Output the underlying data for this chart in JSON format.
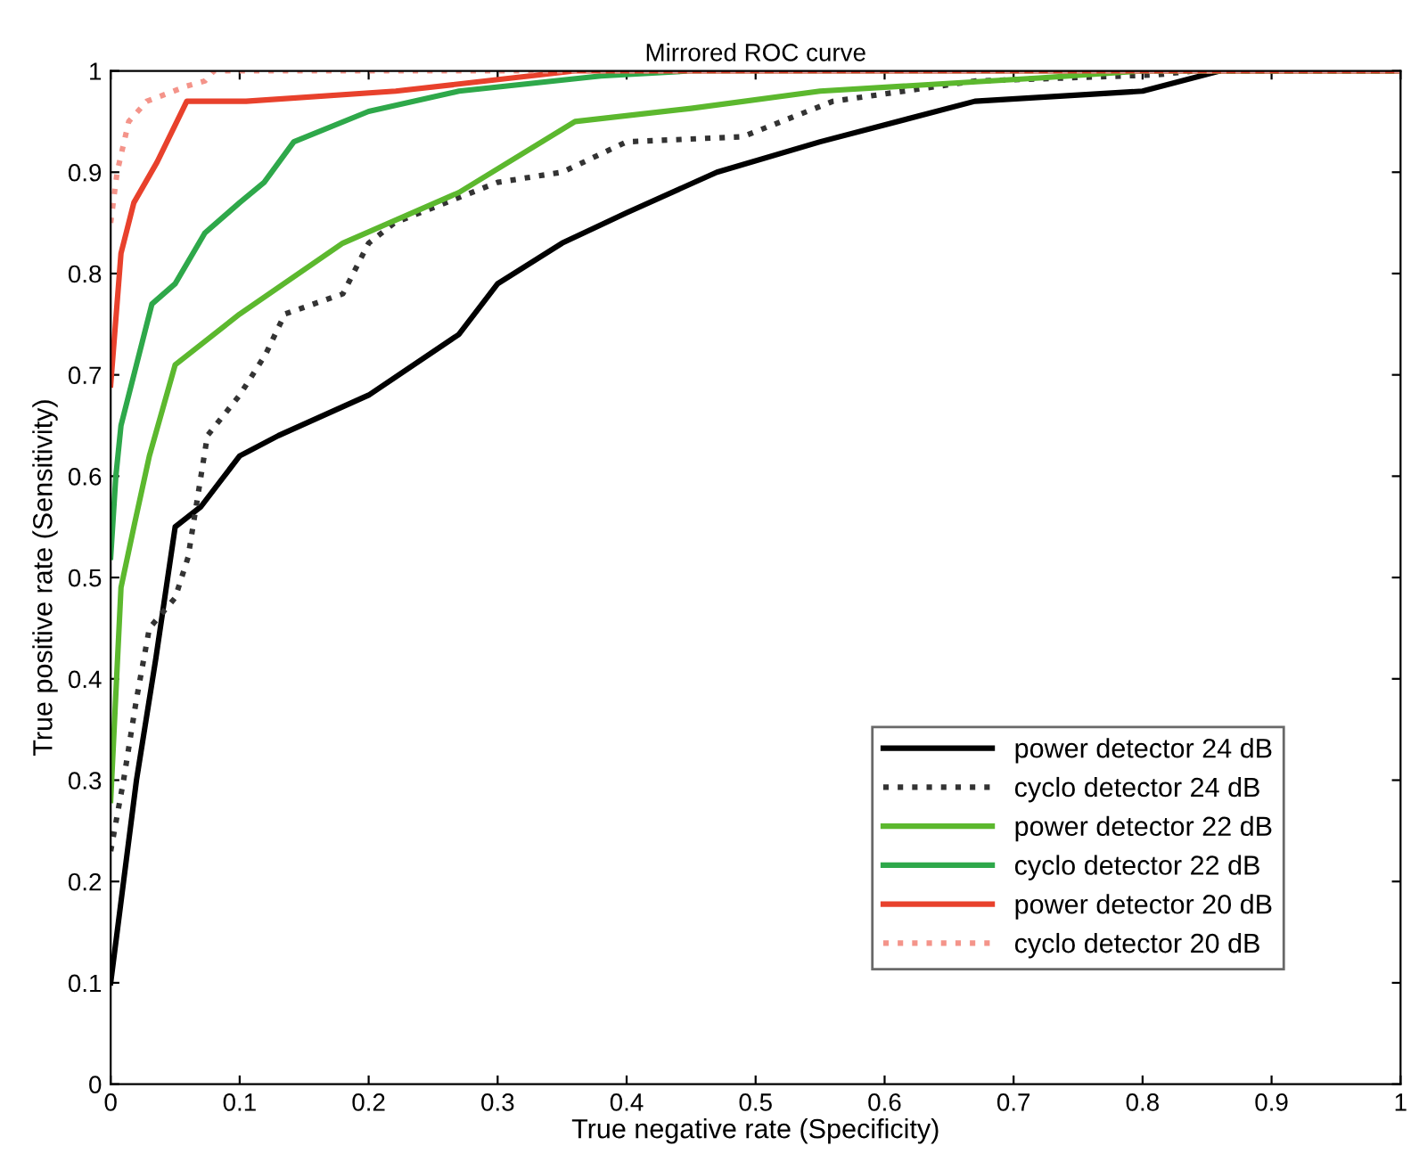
{
  "chart_data": {
    "type": "line",
    "title": "Mirrored ROC curve",
    "xlabel": "True negative rate (Specificity)",
    "ylabel": "True positive rate (Sensitivity)",
    "xlim": [
      0,
      1
    ],
    "ylim": [
      0,
      1
    ],
    "xticks": [
      0,
      0.1,
      0.2,
      0.3,
      0.4,
      0.5,
      0.6,
      0.7,
      0.8,
      0.9,
      1
    ],
    "yticks": [
      0,
      0.1,
      0.2,
      0.3,
      0.4,
      0.5,
      0.6,
      0.7,
      0.8,
      0.9,
      1
    ],
    "grid": false,
    "legend": "bottom right",
    "marker": "none",
    "series": [
      {
        "name": "power detector 24 dB",
        "color": "#000000",
        "line_style": "solid",
        "x": [
          0,
          0.01,
          0.02,
          0.035,
          0.05,
          0.07,
          0.1,
          0.13,
          0.2,
          0.27,
          0.3,
          0.35,
          0.4,
          0.47,
          0.55,
          0.67,
          0.8,
          0.86,
          1
        ],
        "values": [
          0.1,
          0.2,
          0.3,
          0.42,
          0.55,
          0.57,
          0.62,
          0.64,
          0.68,
          0.74,
          0.79,
          0.83,
          0.86,
          0.9,
          0.93,
          0.97,
          0.98,
          1,
          1
        ]
      },
      {
        "name": "cyclo detector 24 dB",
        "color": "#333333",
        "line_style": "dotted",
        "x": [
          0,
          0.01,
          0.02,
          0.03,
          0.05,
          0.06,
          0.075,
          0.1,
          0.12,
          0.135,
          0.18,
          0.2,
          0.22,
          0.3,
          0.35,
          0.4,
          0.49,
          0.56,
          0.67,
          0.81,
          0.84,
          1
        ],
        "values": [
          0.23,
          0.3,
          0.38,
          0.45,
          0.48,
          0.52,
          0.64,
          0.68,
          0.72,
          0.76,
          0.78,
          0.83,
          0.85,
          0.89,
          0.9,
          0.93,
          0.935,
          0.97,
          0.99,
          0.996,
          1,
          1
        ]
      },
      {
        "name": "power detector 22 dB",
        "color": "#5cb82e",
        "line_style": "solid",
        "x": [
          0,
          0.008,
          0.018,
          0.03,
          0.05,
          0.07,
          0.1,
          0.18,
          0.27,
          0.36,
          0.45,
          0.55,
          0.72,
          0.8,
          1
        ],
        "values": [
          0.28,
          0.49,
          0.55,
          0.62,
          0.71,
          0.73,
          0.76,
          0.83,
          0.88,
          0.95,
          0.963,
          0.98,
          0.993,
          1,
          1
        ]
      },
      {
        "name": "cyclo detector 22 dB",
        "color": "#2ea84a",
        "line_style": "solid",
        "x": [
          0,
          0.004,
          0.008,
          0.02,
          0.032,
          0.05,
          0.073,
          0.1,
          0.119,
          0.142,
          0.2,
          0.27,
          0.38,
          0.45,
          1
        ],
        "values": [
          0.52,
          0.6,
          0.65,
          0.71,
          0.77,
          0.79,
          0.84,
          0.87,
          0.89,
          0.93,
          0.96,
          0.98,
          0.995,
          1,
          1
        ]
      },
      {
        "name": "power detector 20 dB",
        "color": "#e8412c",
        "line_style": "solid",
        "x": [
          0,
          0.008,
          0.018,
          0.036,
          0.059,
          0.105,
          0.221,
          0.36,
          1
        ],
        "values": [
          0.69,
          0.82,
          0.87,
          0.91,
          0.97,
          0.97,
          0.98,
          1,
          1
        ]
      },
      {
        "name": "cyclo detector 20 dB",
        "color": "#f4948a",
        "line_style": "dotted",
        "x": [
          0,
          0.005,
          0.014,
          0.028,
          0.059,
          0.073,
          0.08,
          1
        ],
        "values": [
          0.85,
          0.9,
          0.95,
          0.97,
          0.985,
          0.99,
          1,
          1
        ]
      }
    ]
  }
}
